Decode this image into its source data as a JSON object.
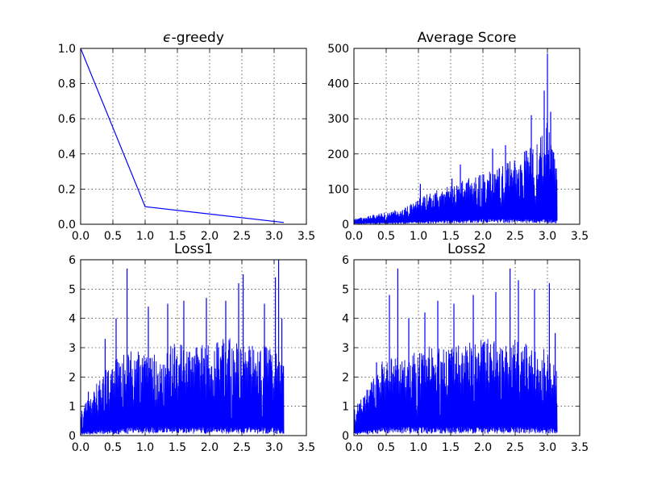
{
  "chart_data": [
    {
      "type": "line",
      "title": "-greedy",
      "title_prefix_symbol": "ϵ",
      "xlabel": "",
      "ylabel": "",
      "xlim": [
        0.0,
        3.5
      ],
      "ylim": [
        0.0,
        1.0
      ],
      "x_ticks": [
        "0.0",
        "0.5",
        "1.0",
        "1.5",
        "2.0",
        "2.5",
        "3.0",
        "3.5"
      ],
      "y_ticks": [
        "0.0",
        "0.2",
        "0.4",
        "0.6",
        "0.8",
        "1.0"
      ],
      "grid": true,
      "color": "#0000ff",
      "series": [
        {
          "x": [
            0.0,
            1.0,
            3.15
          ],
          "y": [
            1.0,
            0.1,
            0.01
          ]
        }
      ]
    },
    {
      "type": "line",
      "title": "Average Score",
      "xlabel": "",
      "ylabel": "",
      "xlim": [
        0.0,
        3.5
      ],
      "ylim": [
        0,
        500
      ],
      "x_ticks": [
        "0.0",
        "0.5",
        "1.0",
        "1.5",
        "2.0",
        "2.5",
        "3.0",
        "3.5"
      ],
      "y_ticks": [
        "0",
        "100",
        "200",
        "300",
        "400",
        "500"
      ],
      "grid": true,
      "color": "#0000ff",
      "envelope": {
        "x": [
          0.0,
          0.25,
          0.5,
          0.75,
          1.0,
          1.25,
          1.5,
          1.75,
          2.0,
          2.25,
          2.5,
          2.75,
          2.95,
          3.0,
          3.15
        ],
        "y_low": [
          3,
          4,
          5,
          6,
          8,
          10,
          12,
          14,
          15,
          16,
          16,
          15,
          15,
          14,
          12
        ],
        "y_high": [
          15,
          25,
          35,
          45,
          75,
          95,
          110,
          130,
          145,
          160,
          190,
          220,
          260,
          300,
          170
        ]
      },
      "peaks": [
        {
          "x": 1.03,
          "y": 115
        },
        {
          "x": 1.52,
          "y": 130
        },
        {
          "x": 1.65,
          "y": 170
        },
        {
          "x": 2.15,
          "y": 215
        },
        {
          "x": 2.35,
          "y": 225
        },
        {
          "x": 2.75,
          "y": 310
        },
        {
          "x": 2.95,
          "y": 380
        },
        {
          "x": 3.0,
          "y": 485
        },
        {
          "x": 3.05,
          "y": 320
        }
      ]
    },
    {
      "type": "line",
      "title": "Loss1",
      "xlabel": "",
      "ylabel": "",
      "xlim": [
        0.0,
        3.5
      ],
      "ylim": [
        0,
        6
      ],
      "x_ticks": [
        "0.0",
        "0.5",
        "1.0",
        "1.5",
        "2.0",
        "2.5",
        "3.0",
        "3.5"
      ],
      "y_ticks": [
        "0",
        "1",
        "2",
        "3",
        "4",
        "5",
        "6"
      ],
      "grid": true,
      "color": "#0000ff",
      "envelope": {
        "x": [
          0.0,
          0.25,
          0.5,
          0.75,
          1.0,
          1.25,
          1.5,
          1.75,
          2.0,
          2.25,
          2.5,
          2.75,
          3.0,
          3.15
        ],
        "y_low": [
          0.1,
          0.2,
          0.2,
          0.3,
          0.3,
          0.3,
          0.3,
          0.3,
          0.3,
          0.3,
          0.3,
          0.3,
          0.3,
          0.2
        ],
        "y_high": [
          0.8,
          1.8,
          2.6,
          3.0,
          2.8,
          3.0,
          3.2,
          3.0,
          3.2,
          3.4,
          3.2,
          3.0,
          3.2,
          2.5
        ]
      },
      "peaks": [
        {
          "x": 0.12,
          "y": 1.5
        },
        {
          "x": 0.38,
          "y": 3.3
        },
        {
          "x": 0.55,
          "y": 4.0
        },
        {
          "x": 0.72,
          "y": 5.7
        },
        {
          "x": 1.05,
          "y": 4.4
        },
        {
          "x": 1.35,
          "y": 4.5
        },
        {
          "x": 1.6,
          "y": 4.6
        },
        {
          "x": 1.95,
          "y": 4.7
        },
        {
          "x": 2.25,
          "y": 4.6
        },
        {
          "x": 2.45,
          "y": 5.2
        },
        {
          "x": 2.52,
          "y": 5.5
        },
        {
          "x": 2.85,
          "y": 4.5
        },
        {
          "x": 3.02,
          "y": 5.4
        },
        {
          "x": 3.07,
          "y": 6.0
        },
        {
          "x": 3.12,
          "y": 4.0
        }
      ]
    },
    {
      "type": "line",
      "title": "Loss2",
      "xlabel": "",
      "ylabel": "",
      "xlim": [
        0.0,
        3.5
      ],
      "ylim": [
        0,
        6
      ],
      "x_ticks": [
        "0.0",
        "0.5",
        "1.0",
        "1.5",
        "2.0",
        "2.5",
        "3.0",
        "3.5"
      ],
      "y_ticks": [
        "0",
        "1",
        "2",
        "3",
        "4",
        "5",
        "6"
      ],
      "grid": true,
      "color": "#0000ff",
      "envelope": {
        "x": [
          0.0,
          0.25,
          0.5,
          0.75,
          1.0,
          1.25,
          1.5,
          1.75,
          2.0,
          2.25,
          2.5,
          2.75,
          3.0,
          3.15
        ],
        "y_low": [
          0.1,
          0.2,
          0.3,
          0.3,
          0.3,
          0.3,
          0.3,
          0.3,
          0.3,
          0.3,
          0.3,
          0.3,
          0.3,
          0.2
        ],
        "y_high": [
          0.9,
          1.8,
          2.8,
          2.6,
          3.0,
          3.2,
          3.0,
          3.2,
          3.4,
          3.2,
          3.4,
          3.0,
          3.0,
          2.2
        ]
      },
      "peaks": [
        {
          "x": 0.15,
          "y": 1.3
        },
        {
          "x": 0.35,
          "y": 2.5
        },
        {
          "x": 0.55,
          "y": 4.8
        },
        {
          "x": 0.68,
          "y": 5.7
        },
        {
          "x": 0.85,
          "y": 4.0
        },
        {
          "x": 1.1,
          "y": 4.2
        },
        {
          "x": 1.3,
          "y": 4.6
        },
        {
          "x": 1.55,
          "y": 4.5
        },
        {
          "x": 1.85,
          "y": 4.8
        },
        {
          "x": 2.2,
          "y": 4.9
        },
        {
          "x": 2.42,
          "y": 5.7
        },
        {
          "x": 2.55,
          "y": 5.3
        },
        {
          "x": 2.8,
          "y": 5.0
        },
        {
          "x": 3.03,
          "y": 5.2
        },
        {
          "x": 3.12,
          "y": 3.5
        }
      ]
    }
  ]
}
